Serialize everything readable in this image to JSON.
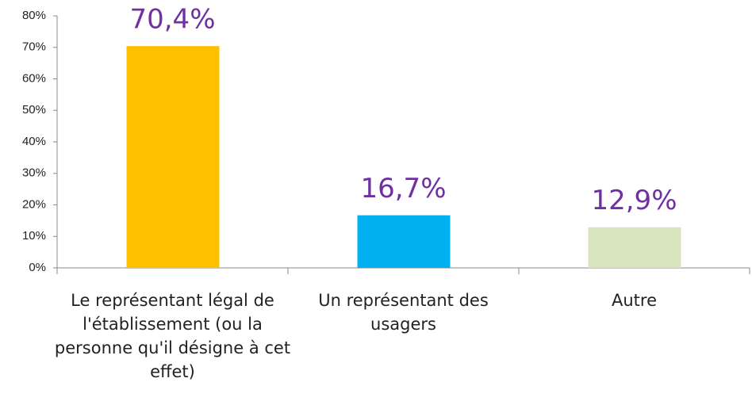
{
  "chart_data": {
    "type": "bar",
    "categories": [
      "Le représentant légal de l'établissement (ou la personne qu'il désigne à cet effet)",
      "Un représentant des usagers",
      "Autre"
    ],
    "values": [
      70.4,
      16.7,
      12.9
    ],
    "value_labels": [
      "70,4%",
      "16,7%",
      "12,9%"
    ],
    "colors": [
      "#ffc000",
      "#00b0f0",
      "#d7e4bd"
    ],
    "ylim": [
      0,
      80
    ],
    "yticks": [
      {
        "value": 0,
        "label": "0%"
      },
      {
        "value": 10,
        "label": "10%"
      },
      {
        "value": 20,
        "label": "20%"
      },
      {
        "value": 30,
        "label": "30%"
      },
      {
        "value": 40,
        "label": "40%"
      },
      {
        "value": 50,
        "label": "50%"
      },
      {
        "value": 60,
        "label": "60%"
      },
      {
        "value": 70,
        "label": "70%"
      },
      {
        "value": 80,
        "label": "80%"
      }
    ],
    "grid": false
  }
}
